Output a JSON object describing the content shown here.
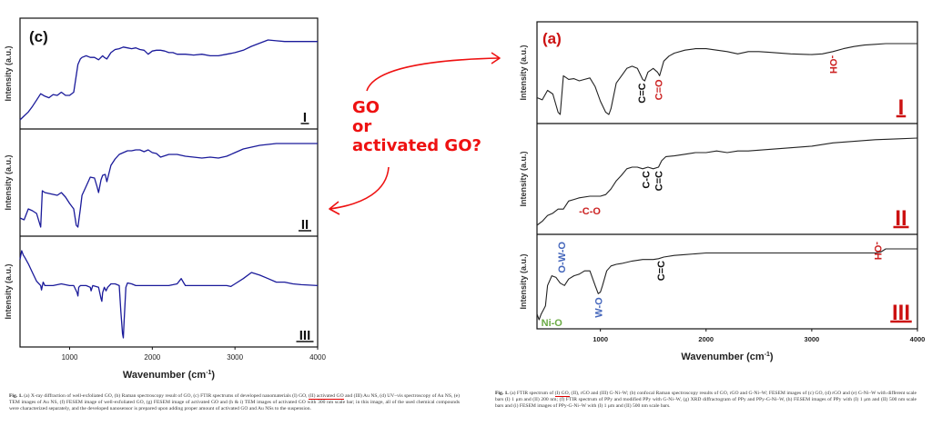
{
  "question": {
    "lines": [
      "GO",
      "or",
      "activated GO?"
    ],
    "color": "#ee1111"
  },
  "left_caption": {
    "fig_label": "Fig. 1.",
    "text_before": "(a) X-ray diffraction of well-exfoliated GO, (b) Raman spectroscopy result of GO, (c) FTIR spectrums of developed nanomaterials (I) GO, ",
    "highlight": "(II) activated GO",
    "text_after": " and (III) Au NS, (d) UV–vis spectroscopy of Au NS, (e) TEM images of Au NS, (f) FESEM image of well-exfoliated GO, (g) FESEM image of activated GO and (h & i) TEM images of activated GO with 300 nm scale bar; in this image, all of the used chemical compounds were characterized separately, and the developed nanosensor is prepared upon adding proper amount of activated GO and Au NSs to the suspension."
  },
  "right_caption": {
    "fig_label": "Fig. 1.",
    "text_before": "(a) FTIR spectrum of ",
    "highlight": "(I) GO,",
    "text_after": " (II), rGO and (III) G-Ni–W; (b) confocal Raman spectroscopy results of GO, rGO and G-Ni–W; FESEM images of (c) GO, (d) rGO and (e) G-Ni–W with different scale bars (I) 1 μm and (II) 200 nm; (f) FTIR spectrum of PPy and modified PPy with G-Ni–W, (g) XRD diffractogram of PPy and PPy-G-Ni–W, (h) FESEM images of PPy with (I) 1 μm and (II) 500 nm scale bars and (i) FESEM images of PPy-G-Ni–W with (I) 1 μm and (II) 500 nm scale bars."
  },
  "chart_data": [
    {
      "type": "line",
      "title": "(c)",
      "xlabel": "Wavenumber (cm",
      "xlabel_sup": "-1",
      "xlabel_end": ")",
      "ylabel": "Intensity (a.u.)",
      "xlim": [
        400,
        4000
      ],
      "xticks": [
        "1000",
        "2000",
        "3000",
        "4000"
      ],
      "xtick_values": [
        1000,
        2000,
        3000,
        4000
      ],
      "line_color": "#1a1a9a",
      "panels": [
        {
          "label": "I",
          "x": [
            400,
            450,
            500,
            550,
            600,
            650,
            700,
            750,
            800,
            850,
            900,
            950,
            1000,
            1050,
            1100,
            1130,
            1150,
            1200,
            1250,
            1300,
            1350,
            1400,
            1420,
            1450,
            1500,
            1550,
            1600,
            1650,
            1700,
            1750,
            1800,
            1850,
            1900,
            1950,
            2000,
            2050,
            2100,
            2150,
            2200,
            2250,
            2300,
            2400,
            2500,
            2600,
            2700,
            2800,
            2900,
            3000,
            3100,
            3200,
            3300,
            3400,
            3500,
            3600,
            3700,
            3800,
            3900,
            4000
          ],
          "y": [
            0.05,
            0.1,
            0.15,
            0.22,
            0.3,
            0.38,
            0.35,
            0.33,
            0.37,
            0.36,
            0.4,
            0.36,
            0.36,
            0.4,
            0.75,
            0.82,
            0.84,
            0.86,
            0.84,
            0.84,
            0.81,
            0.86,
            0.84,
            0.82,
            0.9,
            0.94,
            0.95,
            0.97,
            0.96,
            0.95,
            0.96,
            0.94,
            0.93,
            0.88,
            0.92,
            0.93,
            0.93,
            0.92,
            0.9,
            0.9,
            0.88,
            0.88,
            0.87,
            0.88,
            0.86,
            0.86,
            0.88,
            0.9,
            0.93,
            0.98,
            1.02,
            1.06,
            1.05,
            1.04,
            1.04,
            1.04,
            1.04,
            1.04
          ]
        },
        {
          "label": "II",
          "x": [
            400,
            450,
            500,
            550,
            600,
            650,
            670,
            700,
            750,
            800,
            850,
            900,
            950,
            1000,
            1050,
            1080,
            1100,
            1130,
            1150,
            1200,
            1250,
            1300,
            1330,
            1350,
            1380,
            1400,
            1430,
            1450,
            1500,
            1550,
            1600,
            1650,
            1700,
            1750,
            1800,
            1850,
            1900,
            1950,
            2000,
            2050,
            2100,
            2200,
            2300,
            2400,
            2500,
            2600,
            2700,
            2800,
            2900,
            3000,
            3100,
            3200,
            3300,
            3400,
            3500,
            3600,
            3700,
            3800,
            3900,
            4000
          ],
          "y": [
            0.2,
            0.18,
            0.3,
            0.28,
            0.25,
            0.1,
            0.5,
            0.48,
            0.47,
            0.46,
            0.45,
            0.48,
            0.43,
            0.36,
            0.3,
            0.12,
            0.1,
            0.3,
            0.45,
            0.55,
            0.65,
            0.64,
            0.55,
            0.48,
            0.62,
            0.67,
            0.68,
            0.6,
            0.78,
            0.85,
            0.9,
            0.92,
            0.94,
            0.94,
            0.95,
            0.95,
            0.93,
            0.95,
            0.92,
            0.91,
            0.87,
            0.9,
            0.9,
            0.88,
            0.87,
            0.86,
            0.87,
            0.86,
            0.88,
            0.92,
            0.96,
            0.98,
            1.0,
            1.01,
            1.02,
            1.02,
            1.02,
            1.02,
            1.02,
            1.02
          ]
        },
        {
          "label": "III",
          "x": [
            400,
            420,
            440,
            460,
            500,
            550,
            600,
            650,
            660,
            680,
            700,
            750,
            800,
            900,
            1000,
            1050,
            1090,
            1100,
            1110,
            1130,
            1200,
            1250,
            1260,
            1280,
            1350,
            1380,
            1390,
            1400,
            1420,
            1440,
            1460,
            1480,
            1500,
            1550,
            1600,
            1620,
            1640,
            1650,
            1660,
            1680,
            1700,
            1750,
            1800,
            2000,
            2200,
            2300,
            2350,
            2380,
            2400,
            2500,
            2700,
            2900,
            2950,
            3000,
            3100,
            3200,
            3300,
            3400,
            3500,
            3600,
            3700,
            3800,
            4000
          ],
          "y": [
            0.9,
            1.0,
            0.95,
            0.92,
            0.85,
            0.75,
            0.65,
            0.6,
            0.55,
            0.64,
            0.6,
            0.6,
            0.6,
            0.62,
            0.6,
            0.6,
            0.52,
            0.48,
            0.58,
            0.6,
            0.6,
            0.58,
            0.54,
            0.6,
            0.58,
            0.45,
            0.42,
            0.52,
            0.58,
            0.54,
            0.58,
            0.6,
            0.62,
            0.62,
            0.6,
            0.3,
            0.05,
            0.0,
            0.2,
            0.58,
            0.63,
            0.62,
            0.6,
            0.6,
            0.6,
            0.62,
            0.68,
            0.63,
            0.6,
            0.6,
            0.6,
            0.6,
            0.59,
            0.62,
            0.68,
            0.75,
            0.72,
            0.68,
            0.64,
            0.64,
            0.62,
            0.61,
            0.6
          ]
        }
      ]
    },
    {
      "type": "line",
      "title": "(a)",
      "xlabel": "Wavenumber (cm",
      "xlabel_sup": "-1",
      "xlabel_end": ")",
      "ylabel": "Intensity (a.u.)",
      "xlim": [
        400,
        4000
      ],
      "xticks": [
        "1000",
        "2000",
        "3000",
        "4000"
      ],
      "xtick_values": [
        1000,
        2000,
        3000,
        4000
      ],
      "line_color": "#222222",
      "panels": [
        {
          "label": "I",
          "label_color": "#cc1111",
          "annotations": [
            {
              "text": "C=C",
              "color": "#111111",
              "x": 1400
            },
            {
              "text": "C=O",
              "color": "#cc2222",
              "x": 1560
            },
            {
              "text": "-OH",
              "color": "#cc2222",
              "x": 3200
            }
          ],
          "x": [
            400,
            450,
            500,
            550,
            600,
            620,
            650,
            680,
            700,
            750,
            800,
            850,
            900,
            950,
            1000,
            1050,
            1080,
            1100,
            1150,
            1200,
            1250,
            1300,
            1350,
            1400,
            1420,
            1450,
            1500,
            1540,
            1560,
            1600,
            1650,
            1700,
            1800,
            1900,
            2000,
            2100,
            2200,
            2300,
            2400,
            2500,
            2600,
            2800,
            3000,
            3100,
            3200,
            3300,
            3400,
            3500,
            3600,
            3700,
            3800,
            3900,
            4000
          ],
          "y": [
            0.25,
            0.22,
            0.35,
            0.3,
            0.05,
            0.02,
            0.55,
            0.52,
            0.5,
            0.51,
            0.48,
            0.5,
            0.52,
            0.4,
            0.2,
            0.05,
            0.02,
            0.1,
            0.45,
            0.55,
            0.65,
            0.68,
            0.65,
            0.5,
            0.48,
            0.6,
            0.65,
            0.6,
            0.55,
            0.75,
            0.82,
            0.86,
            0.9,
            0.92,
            0.92,
            0.9,
            0.88,
            0.85,
            0.88,
            0.88,
            0.87,
            0.85,
            0.84,
            0.85,
            0.88,
            0.92,
            0.95,
            0.97,
            0.98,
            0.99,
            0.99,
            0.99,
            0.99
          ]
        },
        {
          "label": "II",
          "label_color": "#cc1111",
          "annotations": [
            {
              "text": "-C-O",
              "color": "#cc2222",
              "x": 900
            },
            {
              "text": "C-C",
              "color": "#111111",
              "x": 1440
            },
            {
              "text": "C=C",
              "color": "#111111",
              "x": 1560
            }
          ],
          "x": [
            400,
            450,
            500,
            550,
            600,
            650,
            700,
            750,
            800,
            900,
            1000,
            1050,
            1100,
            1150,
            1200,
            1250,
            1300,
            1350,
            1400,
            1450,
            1500,
            1550,
            1580,
            1620,
            1700,
            1800,
            1900,
            2000,
            2100,
            2200,
            2300,
            2400,
            2600,
            2800,
            3000,
            3200,
            3400,
            3600,
            3800,
            4000
          ],
          "y": [
            0.0,
            0.05,
            0.12,
            0.15,
            0.2,
            0.2,
            0.3,
            0.32,
            0.34,
            0.36,
            0.36,
            0.38,
            0.45,
            0.55,
            0.62,
            0.7,
            0.72,
            0.72,
            0.7,
            0.72,
            0.7,
            0.72,
            0.8,
            0.85,
            0.86,
            0.88,
            0.9,
            0.9,
            0.92,
            0.9,
            0.92,
            0.92,
            0.94,
            0.96,
            0.98,
            1.02,
            1.04,
            1.06,
            1.07,
            1.08
          ]
        },
        {
          "label": "III",
          "label_color": "#cc1111",
          "annotations": [
            {
              "text": "Ni-O",
              "color": "#6aaa44",
              "x": 540
            },
            {
              "text": "O-W-O",
              "color": "#4466bb",
              "x": 640
            },
            {
              "text": "W-O",
              "color": "#4466bb",
              "x": 990
            },
            {
              "text": "C=C",
              "color": "#111111",
              "x": 1580
            },
            {
              "text": "-OH",
              "color": "#cc2222",
              "x": 3620
            }
          ],
          "x": [
            400,
            420,
            440,
            460,
            480,
            500,
            540,
            580,
            620,
            660,
            700,
            750,
            800,
            850,
            900,
            950,
            980,
            1000,
            1020,
            1060,
            1100,
            1150,
            1200,
            1300,
            1400,
            1500,
            1550,
            1600,
            1700,
            1800,
            1900,
            2000,
            2200,
            2400,
            2600,
            2800,
            3000,
            3200,
            3400,
            3600,
            3650,
            3700,
            3800,
            4000
          ],
          "y": [
            0.25,
            0.18,
            0.25,
            0.3,
            0.35,
            0.6,
            0.72,
            0.7,
            0.63,
            0.6,
            0.68,
            0.72,
            0.74,
            0.78,
            0.78,
            0.6,
            0.5,
            0.52,
            0.6,
            0.78,
            0.84,
            0.86,
            0.87,
            0.9,
            0.92,
            0.92,
            0.93,
            0.95,
            0.97,
            0.98,
            0.99,
            1.0,
            1.0,
            1.0,
            1.0,
            1.0,
            1.0,
            1.0,
            1.0,
            1.0,
            1.01,
            1.05,
            1.05,
            1.05
          ]
        }
      ]
    }
  ]
}
